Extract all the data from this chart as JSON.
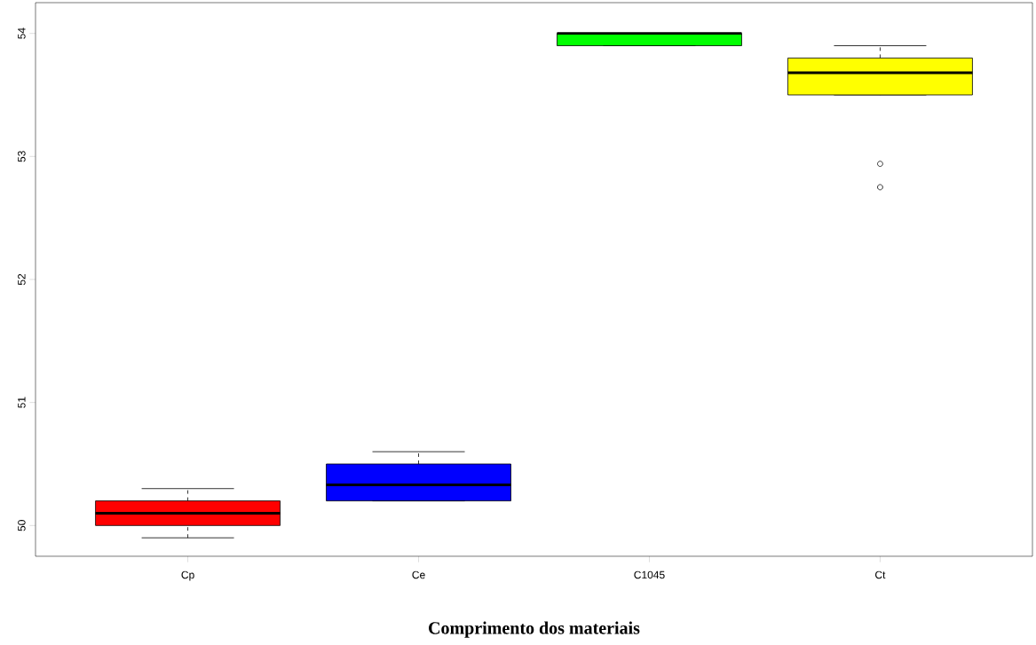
{
  "chart_data": {
    "type": "box",
    "xlabel": "Comprimento dos materiais",
    "categories": [
      "Cp",
      "Ce",
      "C1045",
      "Ct"
    ],
    "colors": [
      "#ff0000",
      "#0000ff",
      "#00ff00",
      "#ffff00"
    ],
    "boxes": [
      {
        "low": 49.9,
        "q1": 50.0,
        "median": 50.1,
        "q3": 50.2,
        "high": 50.3
      },
      {
        "low": 50.2,
        "q1": 50.2,
        "median": 50.33,
        "q3": 50.5,
        "high": 50.6
      },
      {
        "low": 53.9,
        "q1": 53.9,
        "median": 54.0,
        "q3": 54.0,
        "high": 54.0
      },
      {
        "low": 53.5,
        "q1": 53.5,
        "median": 53.68,
        "q3": 53.8,
        "high": 53.9,
        "outliers": [
          52.94,
          52.75
        ]
      }
    ],
    "ylim": [
      49.75,
      54.25
    ],
    "yticks": [
      50,
      51,
      52,
      53,
      54
    ]
  }
}
